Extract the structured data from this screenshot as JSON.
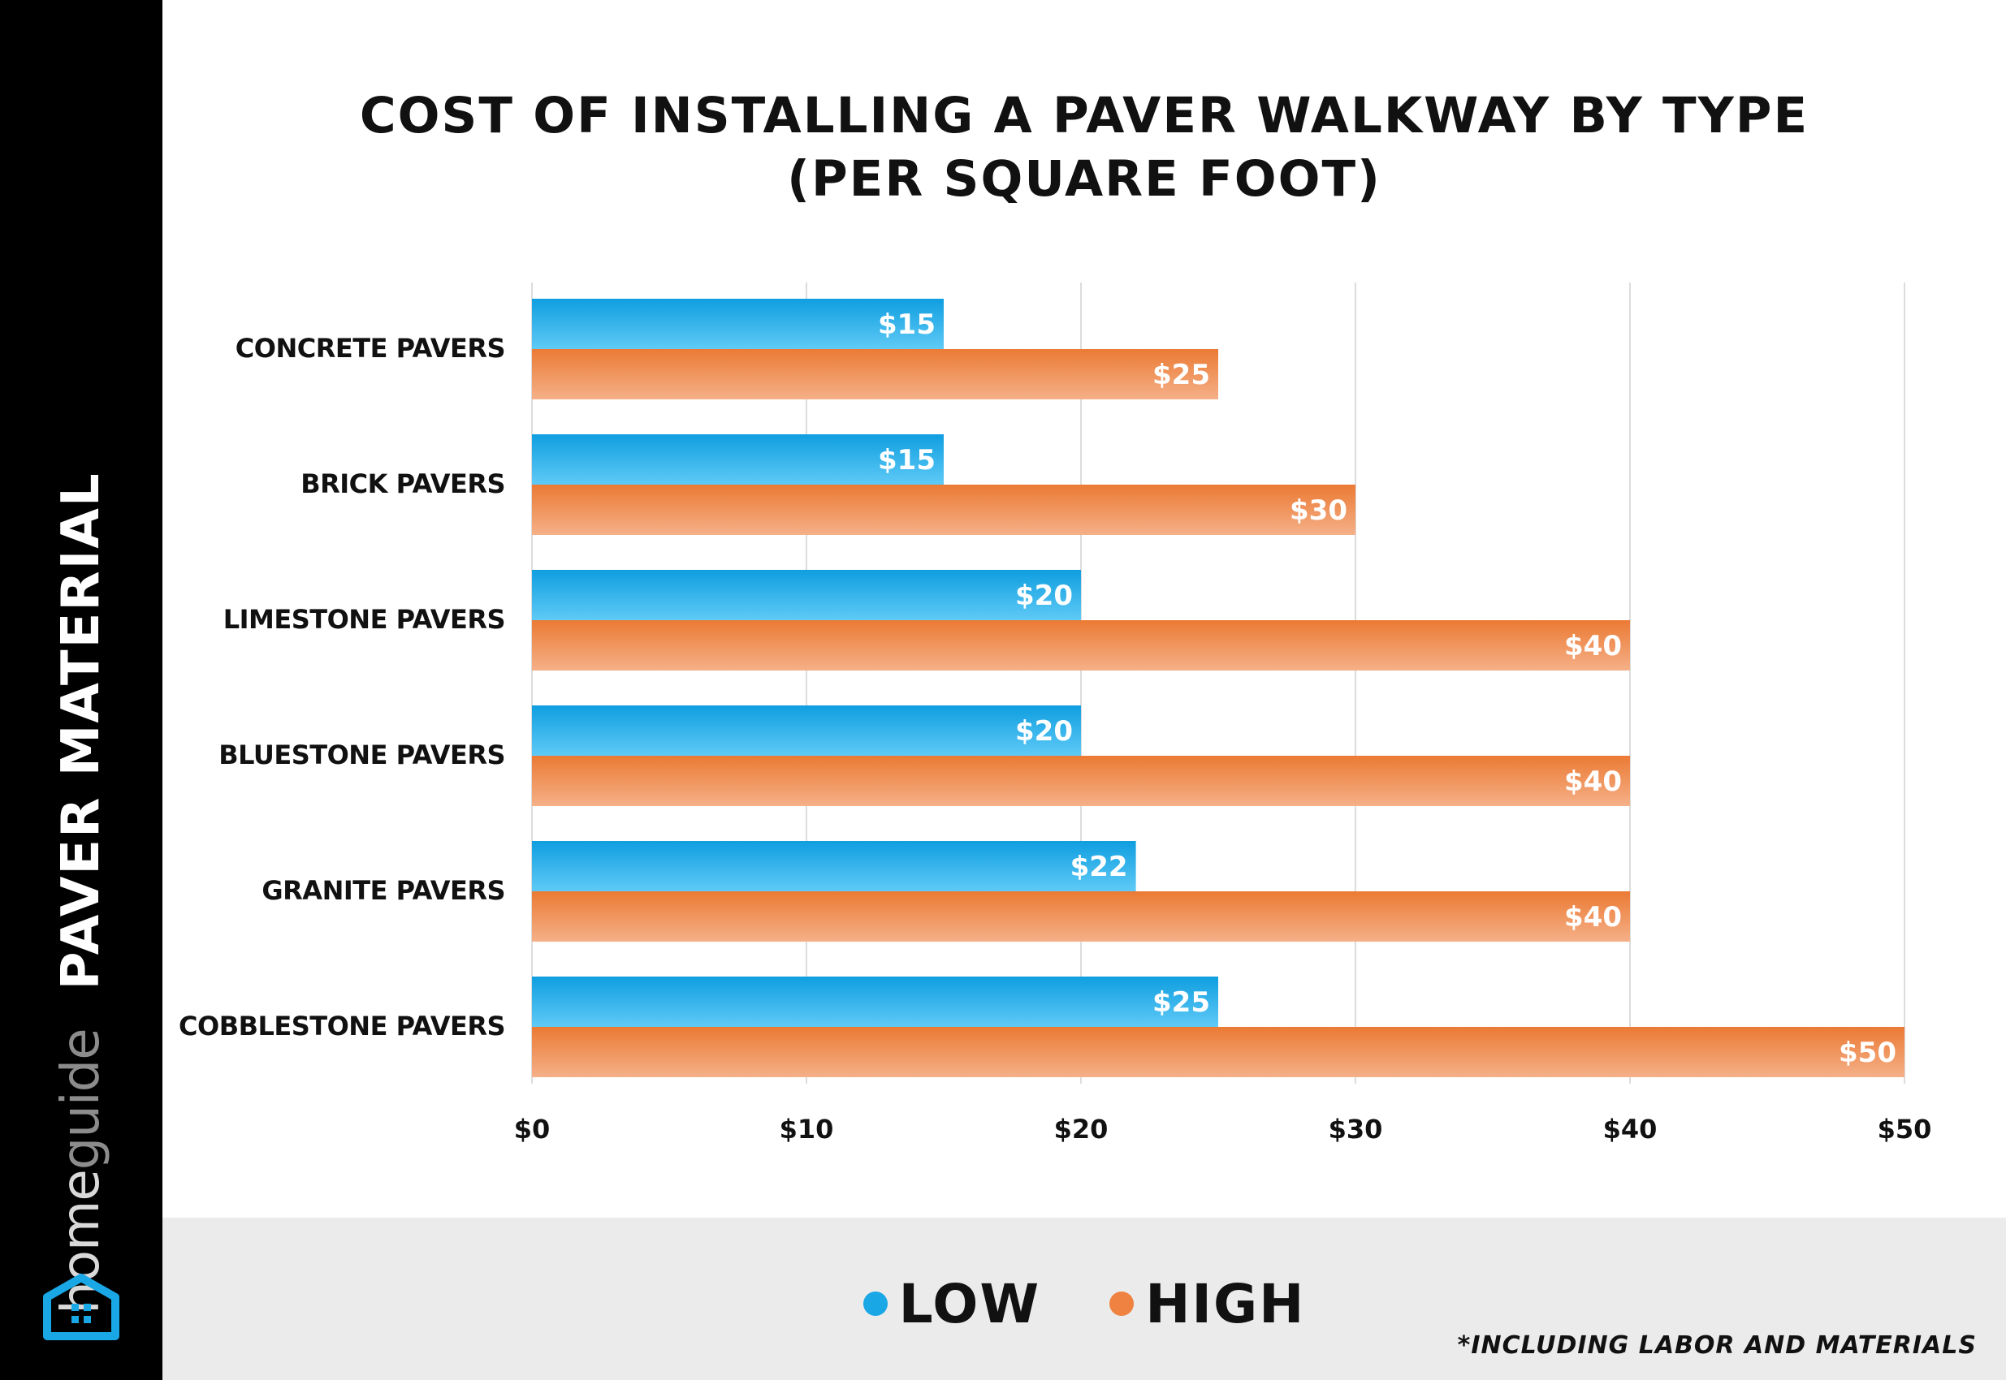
{
  "sidebar": {
    "brand_home": "home",
    "brand_guide": "guide",
    "title": "PAVER MATERIAL",
    "logo_icon": "house-icon"
  },
  "chart_data": {
    "type": "bar",
    "orientation": "horizontal",
    "title_lines": [
      "COST OF INSTALLING A PAVER WALKWAY BY TYPE",
      "(PER SQUARE FOOT)"
    ],
    "categories": [
      "CONCRETE PAVERS",
      "BRICK PAVERS",
      "LIMESTONE PAVERS",
      "BLUESTONE PAVERS",
      "GRANITE PAVERS",
      "COBBLESTONE PAVERS"
    ],
    "series": [
      {
        "name": "LOW",
        "color": "#1aa7e6",
        "values": [
          15,
          15,
          20,
          20,
          22,
          25
        ],
        "labels": [
          "$15",
          "$15",
          "$20",
          "$20",
          "$22",
          "$25"
        ]
      },
      {
        "name": "HIGH",
        "color": "#ef8240",
        "values": [
          25,
          30,
          40,
          40,
          40,
          50
        ],
        "labels": [
          "$25",
          "$30",
          "$40",
          "$40",
          "$40",
          "$50"
        ]
      }
    ],
    "xlim": [
      0,
      50
    ],
    "xticks": [
      0,
      10,
      20,
      30,
      40,
      50
    ],
    "xtick_labels": [
      "$0",
      "$10",
      "$20",
      "$30",
      "$40",
      "$50"
    ],
    "grid": true,
    "legend_position": "bottom-center"
  },
  "footer": {
    "legend": [
      {
        "label": "LOW",
        "color": "#1aa7e6"
      },
      {
        "label": "HIGH",
        "color": "#ef8240"
      }
    ],
    "note": "*INCLUDING LABOR AND MATERIALS"
  }
}
